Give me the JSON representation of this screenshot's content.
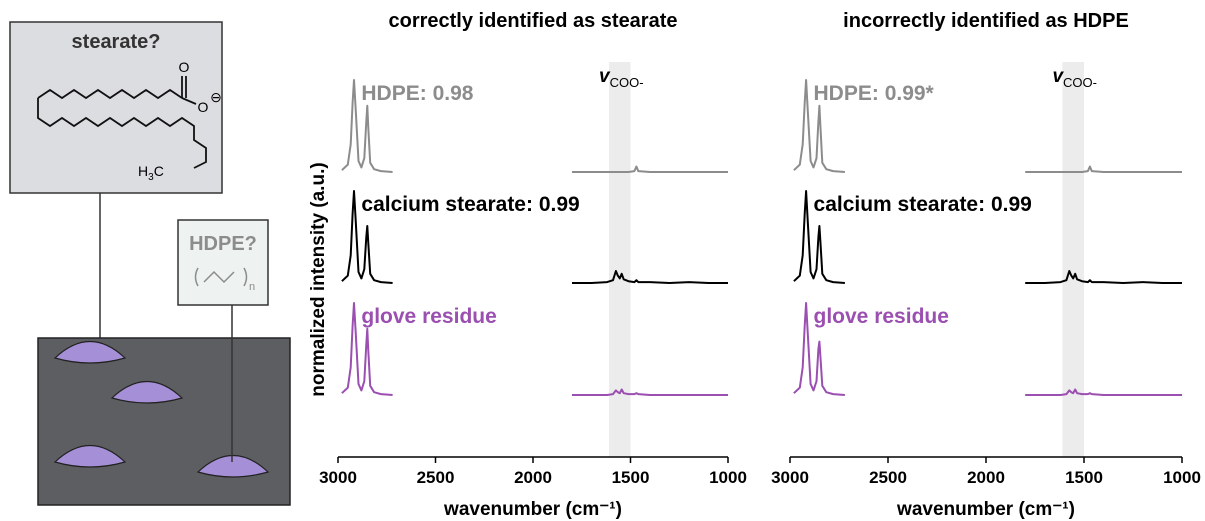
{
  "diagram": {
    "stearate_label": "stearate?",
    "hdpe_label": "HDPE?",
    "oxygen_double": "O",
    "oxygen_single": "O",
    "charge": "⊖",
    "methyl_h": "H",
    "methyl_sub": "3",
    "methyl_c": "C",
    "repeat_sub": "n"
  },
  "chart_data": [
    {
      "type": "line",
      "title": "correctly identified as stearate",
      "y_label": "normalized intensity (a.u.)",
      "x_label": "wavenumber (cm⁻¹)",
      "xlim": [
        3000,
        1000
      ],
      "xticks": [
        3000,
        2500,
        2000,
        1500,
        1000
      ],
      "band": [
        1610,
        1500
      ],
      "band_label": "v",
      "band_label_sub": "COO-",
      "x": [
        2980,
        2950,
        2935,
        2925,
        2918,
        2910,
        2895,
        2880,
        2865,
        2855,
        2850,
        2845,
        2835,
        2815,
        2780,
        2720,
        2200,
        1800,
        1700,
        1620,
        1590,
        1575,
        1565,
        1555,
        1545,
        1535,
        1510,
        1480,
        1470,
        1460,
        1400,
        1300,
        1200,
        1100,
        1000
      ],
      "series": [
        {
          "name": "HDPE: 0.98",
          "color": "#8c8c8c",
          "values": [
            0.02,
            0.08,
            0.3,
            0.75,
            1.0,
            0.7,
            0.12,
            0.05,
            0.15,
            0.55,
            0.72,
            0.5,
            0.1,
            0.03,
            0.01,
            0.0,
            null,
            0,
            0,
            0,
            0,
            0,
            0,
            0,
            0,
            0,
            0,
            0.01,
            0.06,
            0.01,
            0,
            0,
            0,
            0,
            0
          ]
        },
        {
          "name": "calcium stearate: 0.99",
          "color": "#000000",
          "values": [
            0.02,
            0.08,
            0.3,
            0.75,
            1.0,
            0.7,
            0.12,
            0.05,
            0.15,
            0.5,
            0.62,
            0.45,
            0.1,
            0.03,
            0.01,
            0.0,
            null,
            0,
            0,
            0.01,
            0.03,
            0.13,
            0.08,
            0.05,
            0.1,
            0.04,
            0.02,
            0.01,
            0.03,
            0.01,
            0.01,
            0,
            0.01,
            0,
            0
          ]
        },
        {
          "name": "glove residue",
          "color": "#9b4fb0",
          "values": [
            0.02,
            0.08,
            0.3,
            0.75,
            1.0,
            0.7,
            0.12,
            0.05,
            0.15,
            0.55,
            0.72,
            0.5,
            0.1,
            0.03,
            0.01,
            0.0,
            null,
            0,
            0,
            0,
            0.01,
            0.05,
            0.03,
            0.02,
            0.06,
            0.02,
            0.01,
            0.01,
            0.02,
            0.01,
            0,
            0,
            0,
            0,
            0
          ]
        }
      ]
    },
    {
      "type": "line",
      "title": "incorrectly identified as HDPE",
      "x_label": "wavenumber (cm⁻¹)",
      "xlim": [
        3000,
        1000
      ],
      "xticks": [
        3000,
        2500,
        2000,
        1500,
        1000
      ],
      "band": [
        1610,
        1500
      ],
      "band_label": "v",
      "band_label_sub": "COO-",
      "x": [
        2980,
        2950,
        2935,
        2925,
        2918,
        2910,
        2895,
        2880,
        2865,
        2855,
        2850,
        2845,
        2835,
        2815,
        2780,
        2720,
        2200,
        1800,
        1700,
        1620,
        1590,
        1575,
        1565,
        1555,
        1545,
        1535,
        1510,
        1480,
        1470,
        1460,
        1400,
        1300,
        1200,
        1100,
        1000
      ],
      "series": [
        {
          "name": "HDPE: 0.99*",
          "color": "#8c8c8c",
          "values": [
            0.02,
            0.08,
            0.3,
            0.75,
            1.0,
            0.7,
            0.12,
            0.05,
            0.15,
            0.55,
            0.72,
            0.5,
            0.1,
            0.03,
            0.01,
            0.0,
            null,
            0,
            0,
            0,
            0,
            0,
            0,
            0,
            0,
            0,
            0,
            0.01,
            0.06,
            0.01,
            0,
            0,
            0,
            0,
            0
          ]
        },
        {
          "name": "calcium stearate: 0.99",
          "color": "#000000",
          "values": [
            0.02,
            0.08,
            0.3,
            0.75,
            1.0,
            0.7,
            0.12,
            0.05,
            0.15,
            0.5,
            0.62,
            0.45,
            0.1,
            0.03,
            0.01,
            0.0,
            null,
            0,
            0,
            0.01,
            0.03,
            0.13,
            0.08,
            0.05,
            0.1,
            0.04,
            0.02,
            0.01,
            0.03,
            0.01,
            0.01,
            0,
            0.01,
            0,
            0
          ]
        },
        {
          "name": "glove residue",
          "color": "#9b4fb0",
          "values": [
            0.02,
            0.08,
            0.3,
            0.75,
            1.0,
            0.7,
            0.12,
            0.05,
            0.15,
            0.5,
            0.58,
            0.42,
            0.1,
            0.03,
            0.01,
            0.0,
            null,
            0,
            0,
            0,
            0.01,
            0.05,
            0.03,
            0.02,
            0.06,
            0.02,
            0.01,
            0.01,
            0.02,
            0.01,
            0,
            0,
            0,
            0,
            0
          ]
        }
      ]
    }
  ]
}
